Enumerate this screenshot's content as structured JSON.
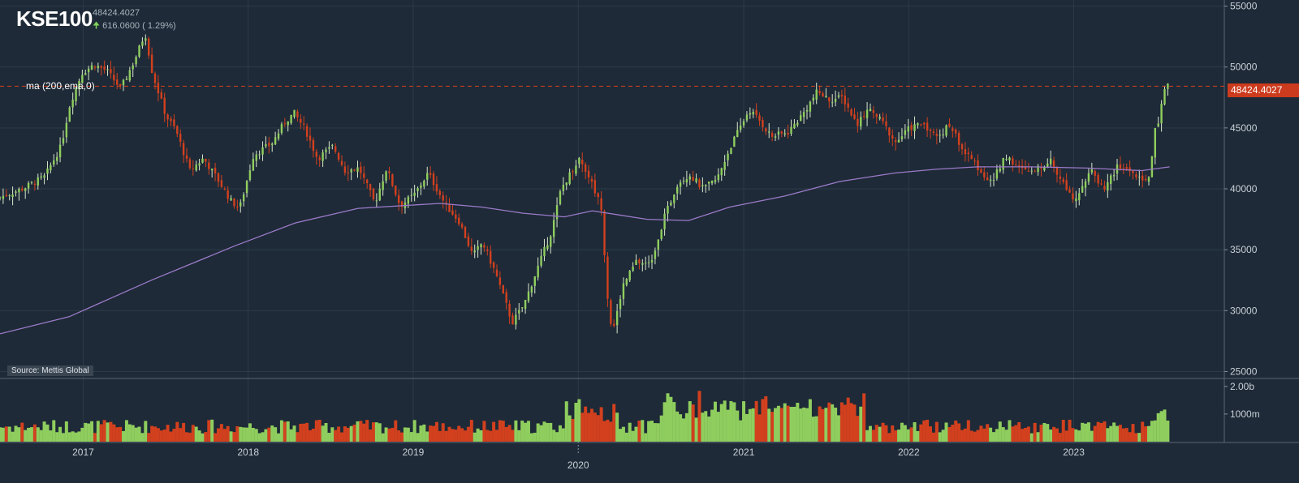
{
  "header": {
    "ticker": "KSE100",
    "last_price": "48424.4027",
    "change": "616.0600 ( 1.29%)"
  },
  "indicator": {
    "label": "ma (200,ema,0)"
  },
  "source": "Source: Mettis Global",
  "last_price_badge": "48424.4027",
  "colors": {
    "background": "#1e2a37",
    "up": "#8fce5e",
    "down": "#d2401e",
    "ma_line": "#9b7ac9",
    "price_line": "#d2401e",
    "grid": "#2c3a48"
  },
  "chart_data": {
    "type": "candlestick",
    "title": "KSE100",
    "interval": "weekly",
    "y_axis": {
      "ticks": [
        25000,
        30000,
        35000,
        40000,
        45000,
        50000,
        55000
      ],
      "range": [
        24500,
        55500
      ]
    },
    "volume_axis": {
      "ticks": [
        "1000m",
        "2.00b"
      ],
      "range": [
        0,
        2200
      ]
    },
    "x_axis": {
      "ticks": [
        "2017",
        "2018",
        "2019",
        "2020",
        "2021",
        "2022",
        "2023"
      ],
      "range": [
        "2016-07-01",
        "2023-11-30"
      ]
    },
    "price_path": [
      [
        "2016-07-01",
        39200
      ],
      [
        "2016-09-01",
        40100
      ],
      [
        "2016-10-15",
        41000
      ],
      [
        "2016-11-20",
        43500
      ],
      [
        "2016-12-10",
        47000
      ],
      [
        "2017-01-05",
        49500
      ],
      [
        "2017-02-01",
        50200
      ],
      [
        "2017-03-01",
        49700
      ],
      [
        "2017-04-01",
        48200
      ],
      [
        "2017-05-01",
        50500
      ],
      [
        "2017-05-25",
        52800
      ],
      [
        "2017-06-10",
        49500
      ],
      [
        "2017-07-10",
        46000
      ],
      [
        "2017-08-01",
        44800
      ],
      [
        "2017-09-01",
        41500
      ],
      [
        "2017-10-01",
        42500
      ],
      [
        "2017-11-01",
        40800
      ],
      [
        "2017-12-01",
        39000
      ],
      [
        "2017-12-20",
        38400
      ],
      [
        "2018-01-20",
        42800
      ],
      [
        "2018-03-01",
        43700
      ],
      [
        "2018-04-01",
        45600
      ],
      [
        "2018-04-20",
        46200
      ],
      [
        "2018-05-15",
        44800
      ],
      [
        "2018-06-10",
        42500
      ],
      [
        "2018-07-15",
        43500
      ],
      [
        "2018-08-10",
        41500
      ],
      [
        "2018-09-10",
        41700
      ],
      [
        "2018-10-15",
        38800
      ],
      [
        "2018-11-10",
        41700
      ],
      [
        "2018-12-10",
        38600
      ],
      [
        "2019-01-10",
        39500
      ],
      [
        "2019-02-10",
        41300
      ],
      [
        "2019-03-20",
        38700
      ],
      [
        "2019-04-20",
        37300
      ],
      [
        "2019-05-20",
        34500
      ],
      [
        "2019-06-10",
        35600
      ],
      [
        "2019-07-10",
        33000
      ],
      [
        "2019-08-15",
        29000
      ],
      [
        "2019-09-10",
        30500
      ],
      [
        "2019-10-10",
        33500
      ],
      [
        "2019-11-10",
        36500
      ],
      [
        "2019-12-01",
        40000
      ],
      [
        "2020-01-10",
        42500
      ],
      [
        "2020-02-01",
        41000
      ],
      [
        "2020-02-28",
        38500
      ],
      [
        "2020-03-15",
        30000
      ],
      [
        "2020-03-25",
        28200
      ],
      [
        "2020-04-15",
        32000
      ],
      [
        "2020-05-15",
        34000
      ],
      [
        "2020-06-15",
        33800
      ],
      [
        "2020-07-15",
        37500
      ],
      [
        "2020-08-15",
        40500
      ],
      [
        "2020-09-10",
        41200
      ],
      [
        "2020-10-10",
        40000
      ],
      [
        "2020-11-10",
        40800
      ],
      [
        "2020-12-10",
        43500
      ],
      [
        "2021-01-20",
        46500
      ],
      [
        "2021-02-10",
        45700
      ],
      [
        "2021-03-10",
        44300
      ],
      [
        "2021-04-15",
        44600
      ],
      [
        "2021-05-20",
        46200
      ],
      [
        "2021-06-20",
        48000
      ],
      [
        "2021-07-15",
        47300
      ],
      [
        "2021-08-15",
        47500
      ],
      [
        "2021-09-15",
        45300
      ],
      [
        "2021-10-10",
        46600
      ],
      [
        "2021-11-10",
        45500
      ],
      [
        "2021-12-10",
        43800
      ],
      [
        "2022-01-10",
        45000
      ],
      [
        "2022-02-10",
        45400
      ],
      [
        "2022-03-10",
        44200
      ],
      [
        "2022-04-10",
        45300
      ],
      [
        "2022-05-10",
        43000
      ],
      [
        "2022-06-10",
        41800
      ],
      [
        "2022-07-10",
        40400
      ],
      [
        "2022-08-10",
        42800
      ],
      [
        "2022-09-10",
        41600
      ],
      [
        "2022-10-10",
        41300
      ],
      [
        "2022-11-15",
        42400
      ],
      [
        "2022-12-15",
        40500
      ],
      [
        "2023-01-10",
        39200
      ],
      [
        "2023-02-15",
        41500
      ],
      [
        "2023-03-15",
        40000
      ],
      [
        "2023-04-15",
        41800
      ],
      [
        "2023-05-15",
        41500
      ],
      [
        "2023-06-10",
        40400
      ],
      [
        "2023-06-25",
        41200
      ],
      [
        "2023-07-05",
        44500
      ],
      [
        "2023-07-15",
        45600
      ],
      [
        "2023-07-25",
        47600
      ],
      [
        "2023-08-01",
        48424
      ]
    ],
    "ma_path": [
      [
        "2016-07-01",
        28100
      ],
      [
        "2016-12-01",
        29500
      ],
      [
        "2017-06-01",
        32500
      ],
      [
        "2017-12-01",
        35300
      ],
      [
        "2018-04-15",
        37200
      ],
      [
        "2018-09-01",
        38400
      ],
      [
        "2019-03-01",
        38800
      ],
      [
        "2019-06-01",
        38500
      ],
      [
        "2019-09-01",
        38000
      ],
      [
        "2019-12-01",
        37700
      ],
      [
        "2020-02-01",
        38200
      ],
      [
        "2020-06-01",
        37500
      ],
      [
        "2020-09-01",
        37400
      ],
      [
        "2020-12-01",
        38500
      ],
      [
        "2021-04-01",
        39400
      ],
      [
        "2021-08-01",
        40600
      ],
      [
        "2021-12-01",
        41300
      ],
      [
        "2022-03-01",
        41600
      ],
      [
        "2022-06-01",
        41800
      ],
      [
        "2022-10-01",
        41800
      ],
      [
        "2023-02-01",
        41700
      ],
      [
        "2023-06-01",
        41500
      ],
      [
        "2023-08-01",
        41800
      ]
    ],
    "last_price": 48424.4027
  }
}
